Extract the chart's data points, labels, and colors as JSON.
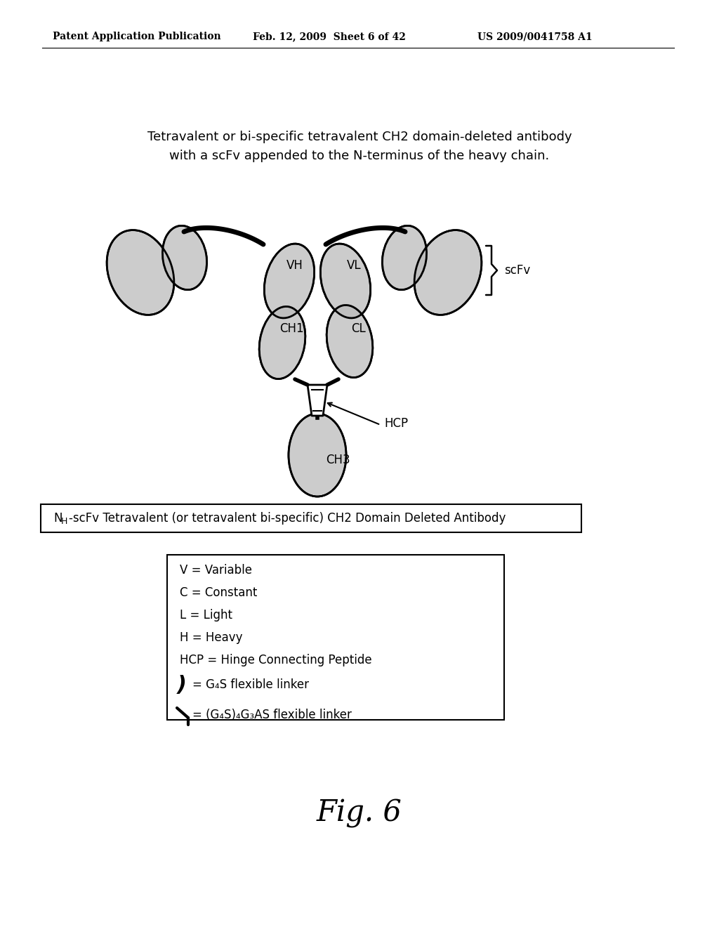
{
  "title_line1": "Tetravalent or bi-specific tetravalent CH2 domain-deleted antibody",
  "title_line2": "with a scFv appended to the N-terminus of the heavy chain.",
  "header_left": "Patent Application Publication",
  "header_mid": "Feb. 12, 2009  Sheet 6 of 42",
  "header_right": "US 2009/0041758 A1",
  "label_VH": "VH",
  "label_VL": "VL",
  "label_CH1": "CH1",
  "label_CL": "CL",
  "label_HCP": "HCP",
  "label_CH3": "CH3",
  "label_scFv": "scFv",
  "fig_label": "Fig. 6",
  "bg_color": "#ffffff",
  "lw_thick": 4.0,
  "lw_thin": 1.5,
  "legend_lines": [
    "V = Variable",
    "C = Constant",
    "L = Light",
    "H = Heavy",
    "HCP = Hinge Connecting Peptide"
  ]
}
